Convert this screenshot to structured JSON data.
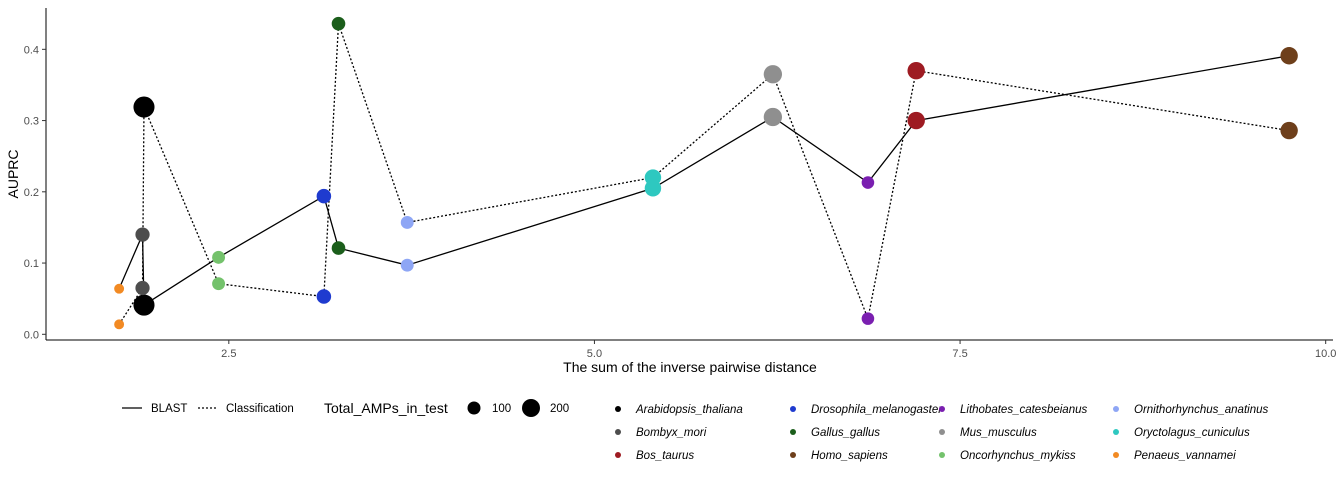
{
  "chart_data": {
    "type": "scatter",
    "xlabel": "The sum of the inverse pairwise distance",
    "ylabel": "AUPRC",
    "xlim": [
      1.25,
      10.05
    ],
    "ylim": [
      -0.008,
      0.458
    ],
    "x_ticks": [
      2.5,
      5.0,
      7.5,
      10.0
    ],
    "x_tick_labels": [
      "2.5",
      "5.0",
      "7.5",
      "10.0"
    ],
    "y_ticks": [
      0.0,
      0.1,
      0.2,
      0.3,
      0.4
    ],
    "y_tick_labels": [
      "0.0",
      "0.1",
      "0.2",
      "0.3",
      "0.4"
    ],
    "grid": false,
    "legend_position": "bottom",
    "linetype_legend": {
      "entries": [
        {
          "label": "BLAST",
          "style": "solid"
        },
        {
          "label": "Classification",
          "style": "dotted"
        }
      ]
    },
    "size_legend": {
      "title": "Total_AMPs_in_test",
      "entries": [
        {
          "label": "100",
          "value": 100
        },
        {
          "label": "200",
          "value": 200
        }
      ]
    },
    "species": [
      {
        "name": "Arabidopsis_thaliana",
        "color": "#000000",
        "x": 1.92,
        "total_amps": 230,
        "blast": 0.041,
        "classification": 0.319
      },
      {
        "name": "Bombyx_mori",
        "color": "#4d4d4d",
        "x": 1.91,
        "total_amps": 80,
        "blast": 0.14,
        "classification": 0.065
      },
      {
        "name": "Bos_taurus",
        "color": "#9e1b22",
        "x": 7.2,
        "total_amps": 140,
        "blast": 0.3,
        "classification": 0.37
      },
      {
        "name": "Drosophila_melanogaster",
        "color": "#1f3bcf",
        "x": 3.15,
        "total_amps": 85,
        "blast": 0.194,
        "classification": 0.053
      },
      {
        "name": "Gallus_gallus",
        "color": "#1b5e1b",
        "x": 3.25,
        "total_amps": 70,
        "blast": 0.121,
        "classification": 0.436
      },
      {
        "name": "Homo_sapiens",
        "color": "#6e3f1b",
        "x": 9.75,
        "total_amps": 140,
        "blast": 0.391,
        "classification": 0.286
      },
      {
        "name": "Lithobates_catesbeianus",
        "color": "#7a1fb0",
        "x": 6.87,
        "total_amps": 55,
        "blast": 0.213,
        "classification": 0.022
      },
      {
        "name": "Mus_musculus",
        "color": "#8f8f8f",
        "x": 6.22,
        "total_amps": 160,
        "blast": 0.305,
        "classification": 0.365
      },
      {
        "name": "Oncorhynchus_mykiss",
        "color": "#74c26c",
        "x": 2.43,
        "total_amps": 60,
        "blast": 0.108,
        "classification": 0.071
      },
      {
        "name": "Ornithorhynchus_anatinus",
        "color": "#8ea6f5",
        "x": 3.72,
        "total_amps": 60,
        "blast": 0.097,
        "classification": 0.157
      },
      {
        "name": "Oryctolagus_cuniculus",
        "color": "#2ec8c0",
        "x": 5.4,
        "total_amps": 120,
        "blast": 0.205,
        "classification": 0.22
      },
      {
        "name": "Penaeus_vannamei",
        "color": "#f28a23",
        "x": 1.75,
        "total_amps": 25,
        "blast": 0.064,
        "classification": 0.014
      }
    ],
    "line_order_species": [
      "Penaeus_vannamei",
      "Bombyx_mori",
      "Arabidopsis_thaliana",
      "Oncorhynchus_mykiss",
      "Drosophila_melanogaster",
      "Gallus_gallus",
      "Ornithorhynchus_anatinus",
      "Oryctolagus_cuniculus",
      "Mus_musculus",
      "Lithobates_catesbeianus",
      "Bos_taurus",
      "Homo_sapiens"
    ]
  }
}
